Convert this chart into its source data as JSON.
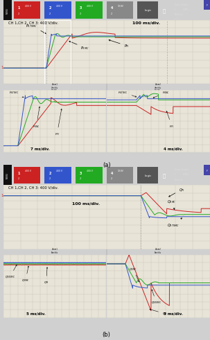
{
  "fig_width": 3.04,
  "fig_height": 5.0,
  "dpi": 100,
  "bg_color": "#d0d0d0",
  "osc_bg": "#e8e4d8",
  "grid_color": "#c8c4b8",
  "header_bg": "#1a1a1a",
  "ch1_color": "#cc2222",
  "ch2_color": "#22aa22",
  "ch3_color": "#3355cc",
  "ch4_color": "#aaaaaa",
  "zoom_hdr_bg": "#c0c0b8",
  "panel_a": {
    "label_text": "CH 1,CH 2, CH 3: 400 V/div.",
    "time_label": "100 ms/div.",
    "zoom1_label": "7 ms/div.",
    "zoom2_label": "4 ms/div."
  },
  "panel_b": {
    "label_text": "CH 1,CH 2, CH 3: 400 V/div.",
    "time_label": "100 ms/div.",
    "zoom1_label": "5 ms/div.",
    "zoom2_label": "5 ms/div."
  }
}
